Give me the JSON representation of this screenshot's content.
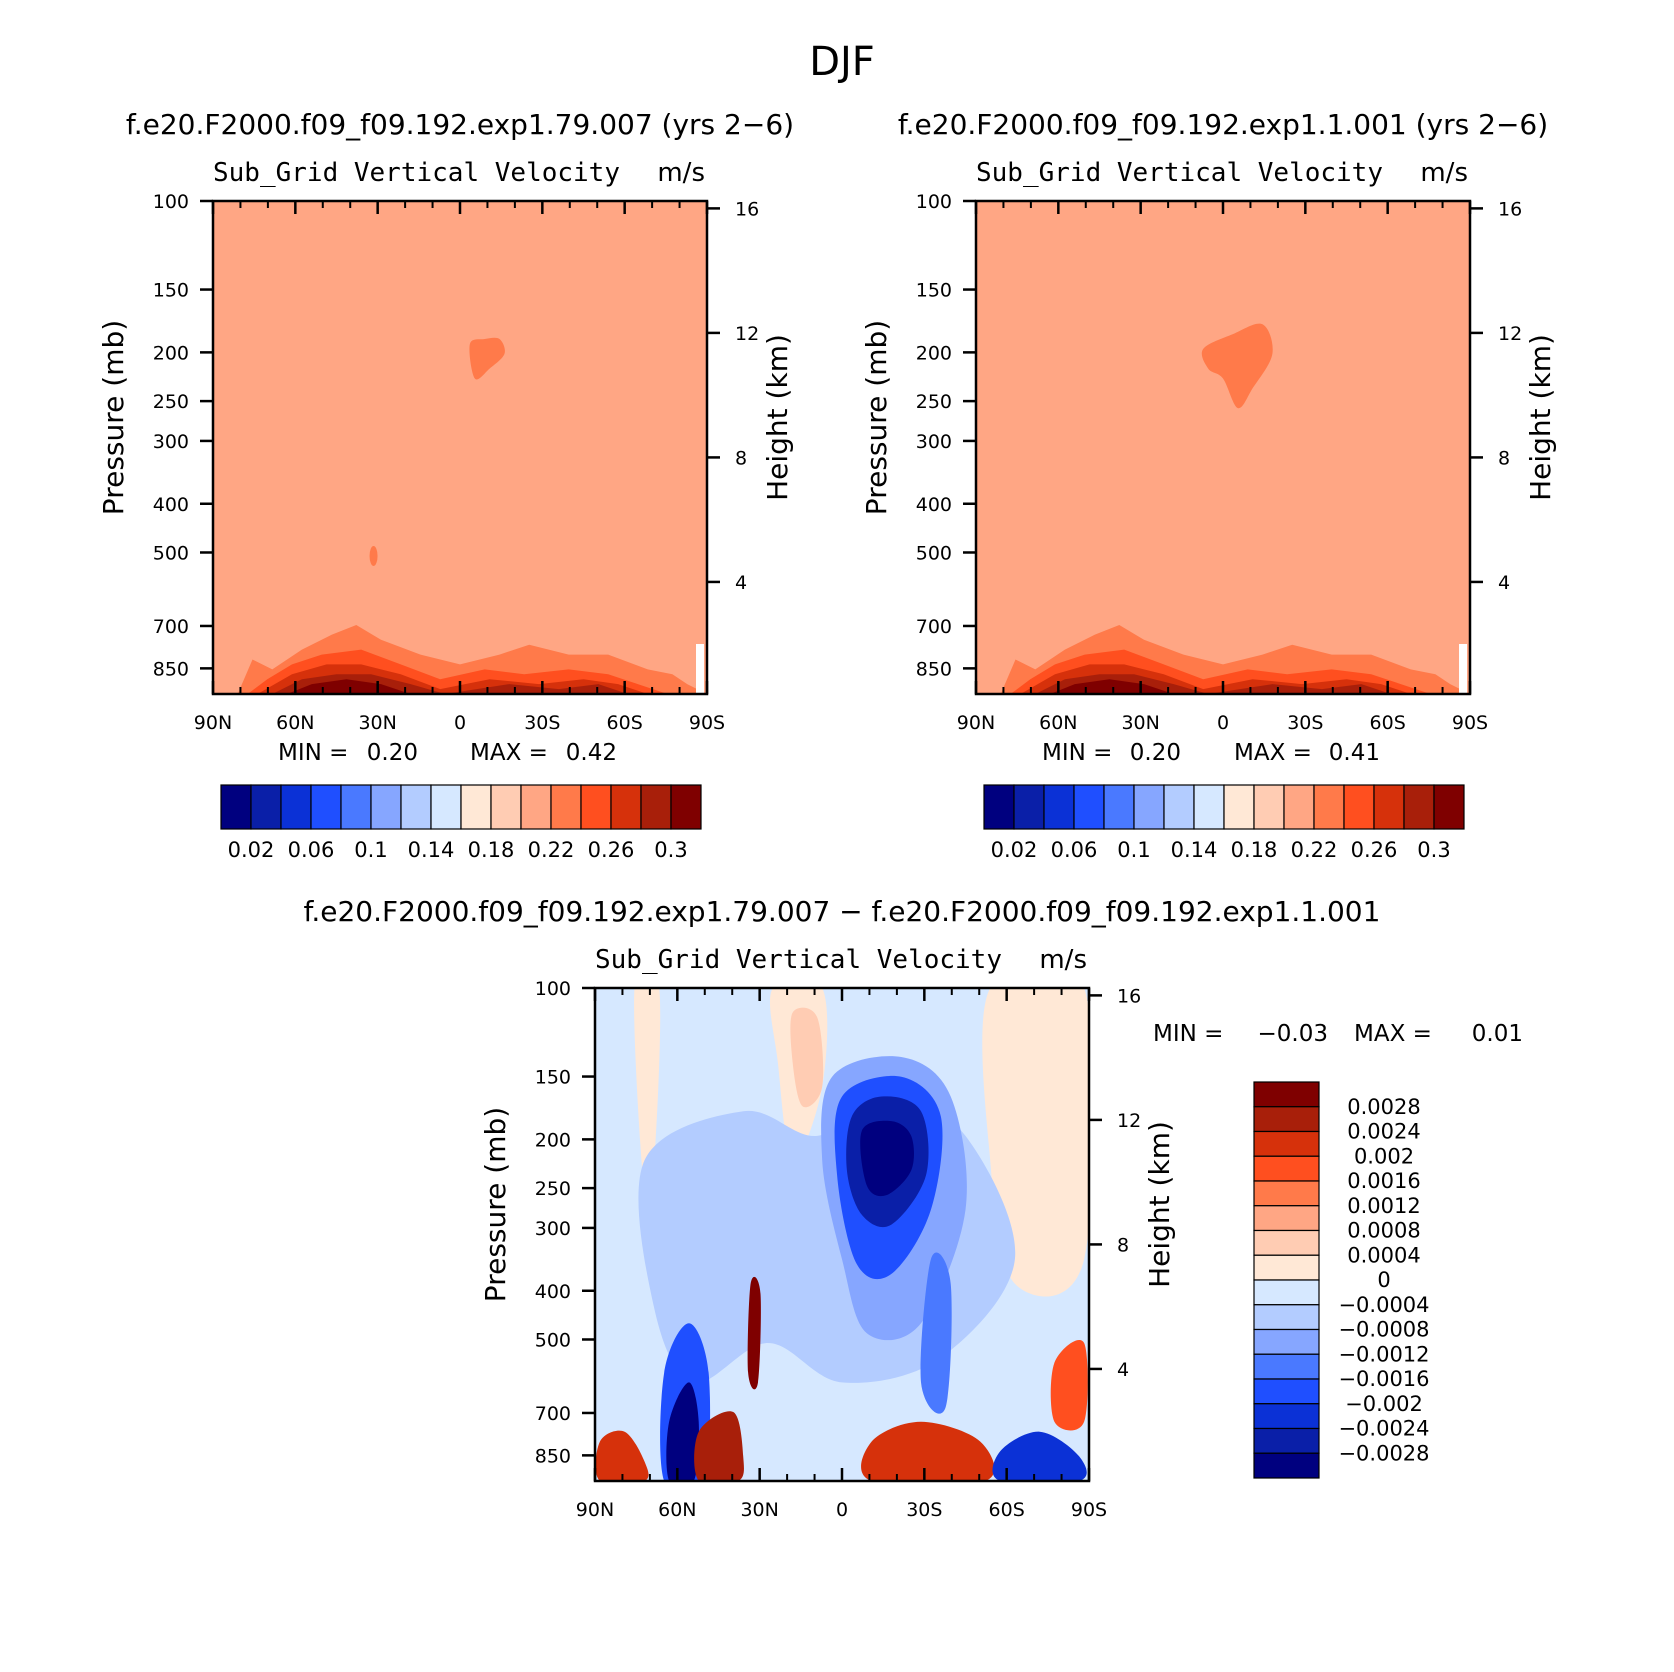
{
  "figure": {
    "title": "DJF"
  },
  "colors": {
    "diverging": [
      "#00007f",
      "#0a1fa8",
      "#0b31d6",
      "#1f4fff",
      "#4a79ff",
      "#86a6ff",
      "#b3ccff",
      "#d6e8ff",
      "#ffe8d6",
      "#ffccb3",
      "#ffa684",
      "#ff7a4a",
      "#ff4f1f",
      "#d6310b",
      "#a81f0a",
      "#7f0000"
    ],
    "background_upper": "#ffa684"
  },
  "chart_data": [
    {
      "type": "contour",
      "case_label": "f.e20.F2000.f09_f09.192.exp1.79.007 (yrs 2−6)",
      "title": "Sub_Grid Vertical Velocity",
      "units": "m/s",
      "ylabel": "Pressure (mb)",
      "ylabel_right": "Height (km)",
      "pressure_ticks": [
        "100",
        "150",
        "200",
        "250",
        "300",
        "400",
        "500",
        "700",
        "850"
      ],
      "height_ticks": [
        "16",
        "12",
        "8",
        "4"
      ],
      "lat_ticks": [
        "90N",
        "60N",
        "30N",
        "0",
        "30S",
        "60S",
        "90S"
      ],
      "min_label": "MIN =",
      "min_value": "0.20",
      "max_label": "MAX =",
      "max_value": "0.42",
      "colorbar_labels": [
        "0.02",
        "0.06",
        "0.1",
        "0.14",
        "0.18",
        "0.22",
        "0.26",
        "0.3"
      ]
    },
    {
      "type": "contour",
      "case_label": "f.e20.F2000.f09_f09.192.exp1.1.001 (yrs 2−6)",
      "title": "Sub_Grid Vertical Velocity",
      "units": "m/s",
      "ylabel": "Pressure (mb)",
      "ylabel_right": "Height (km)",
      "pressure_ticks": [
        "100",
        "150",
        "200",
        "250",
        "300",
        "400",
        "500",
        "700",
        "850"
      ],
      "height_ticks": [
        "16",
        "12",
        "8",
        "4"
      ],
      "lat_ticks": [
        "90N",
        "60N",
        "30N",
        "0",
        "30S",
        "60S",
        "90S"
      ],
      "min_label": "MIN =",
      "min_value": "0.20",
      "max_label": "MAX =",
      "max_value": "0.41",
      "colorbar_labels": [
        "0.02",
        "0.06",
        "0.1",
        "0.14",
        "0.18",
        "0.22",
        "0.26",
        "0.3"
      ]
    },
    {
      "type": "contour",
      "case_label": "f.e20.F2000.f09_f09.192.exp1.79.007 − f.e20.F2000.f09_f09.192.exp1.1.001",
      "title": "Sub_Grid Vertical Velocity",
      "units": "m/s",
      "ylabel": "Pressure (mb)",
      "ylabel_right": "Height (km)",
      "pressure_ticks": [
        "100",
        "150",
        "200",
        "250",
        "300",
        "400",
        "500",
        "700",
        "850"
      ],
      "height_ticks": [
        "16",
        "12",
        "8",
        "4"
      ],
      "lat_ticks": [
        "90N",
        "60N",
        "30N",
        "0",
        "30S",
        "60S",
        "90S"
      ],
      "min_label": "MIN =",
      "min_value": "−0.03",
      "max_label": "MAX =",
      "max_value": "0.01",
      "colorbar_labels": [
        "0.0028",
        "0.0024",
        "0.002",
        "0.0016",
        "0.0012",
        "0.0008",
        "0.0004",
        "0",
        "−0.0004",
        "−0.0008",
        "−0.0012",
        "−0.0016",
        "−0.002",
        "−0.0024",
        "−0.0028"
      ]
    }
  ]
}
